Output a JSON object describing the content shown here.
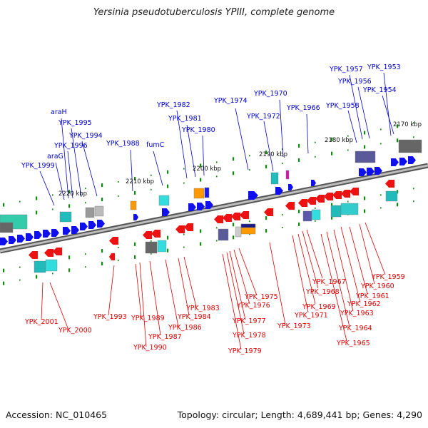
{
  "title": "Yersinia pseudotuberculosis YPIII, complete genome",
  "footer": {
    "accession": "Accession: NC_010465",
    "summary": "Topology: circular; Length: 4,689,441 bp; Genes: 4,290"
  },
  "colors": {
    "backbone": "#a0a0a0",
    "forward_label": "#0000cc",
    "reverse_label": "#dd0000",
    "forward_gene": "#1010ee",
    "reverse_gene": "#ee1111",
    "tick": "#118811"
  },
  "scale_labels": [
    "2170 kbp",
    "2180 kbp",
    "2190 kbp",
    "2200 kbp",
    "2210 kbp",
    "2220 kbp"
  ],
  "forward_labels": [
    "YPK_1953",
    "YPK_1957",
    "YPK_1956",
    "YPK_1954",
    "YPK_1958",
    "YPK_1970",
    "YPK_1966",
    "YPK_1974",
    "YPK_1972",
    "YPK_1982",
    "YPK_1981",
    "YPK_1980",
    "fumC",
    "YPK_1988",
    "araH",
    "YPK_1995",
    "YPK_1994",
    "YPK_1996",
    "araG",
    "YPK_1999"
  ],
  "reverse_labels": [
    "YPK_1959",
    "YPK_1960",
    "YPK_1967",
    "YPK_1961",
    "YPK_1968",
    "YPK_1962",
    "YPK_1969",
    "YPK_1963",
    "YPK_1971",
    "YPK_1964",
    "YPK_1965",
    "YPK_1973",
    "YPK_1975",
    "YPK_1976",
    "YPK_1977",
    "YPK_1978",
    "YPK_1979",
    "YPK_1983",
    "YPK_1984",
    "YPK_1986",
    "YPK_1987",
    "YPK_1990",
    "YPK_1989",
    "YPK_1993",
    "YPK_2001",
    "YPK_2000"
  ]
}
